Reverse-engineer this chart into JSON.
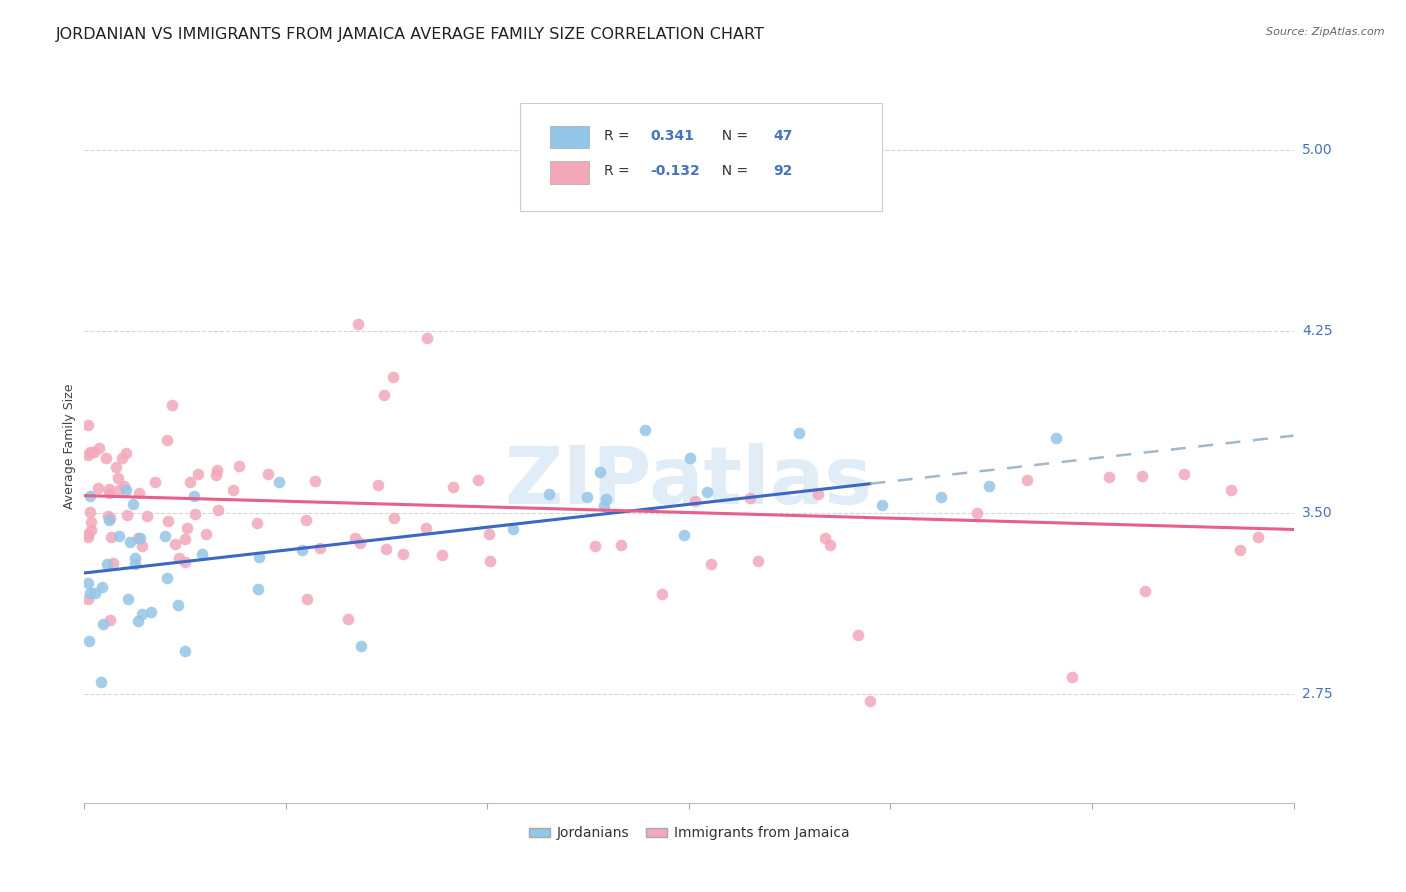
{
  "title": "JORDANIAN VS IMMIGRANTS FROM JAMAICA AVERAGE FAMILY SIZE CORRELATION CHART",
  "source": "Source: ZipAtlas.com",
  "ylabel": "Average Family Size",
  "yticks": [
    2.75,
    3.5,
    4.25,
    5.0
  ],
  "xlim": [
    0.0,
    0.3
  ],
  "ylim": [
    2.3,
    5.25
  ],
  "color_jordan": "#93C6E8",
  "color_jamaica": "#F4A7B9",
  "line_jordan": "#3A68C4",
  "line_jamaica": "#E8608A",
  "line_extrapolated": "#9FB8D0",
  "watermark": "ZIPatlas",
  "background_color": "#ffffff",
  "grid_color": "#cccccc",
  "title_fontsize": 11.5,
  "axis_label_fontsize": 9,
  "tick_fontsize": 10,
  "tick_color": "#4472C4",
  "legend_R1": "0.341",
  "legend_N1": "47",
  "legend_R2": "-0.132",
  "legend_N2": "92"
}
